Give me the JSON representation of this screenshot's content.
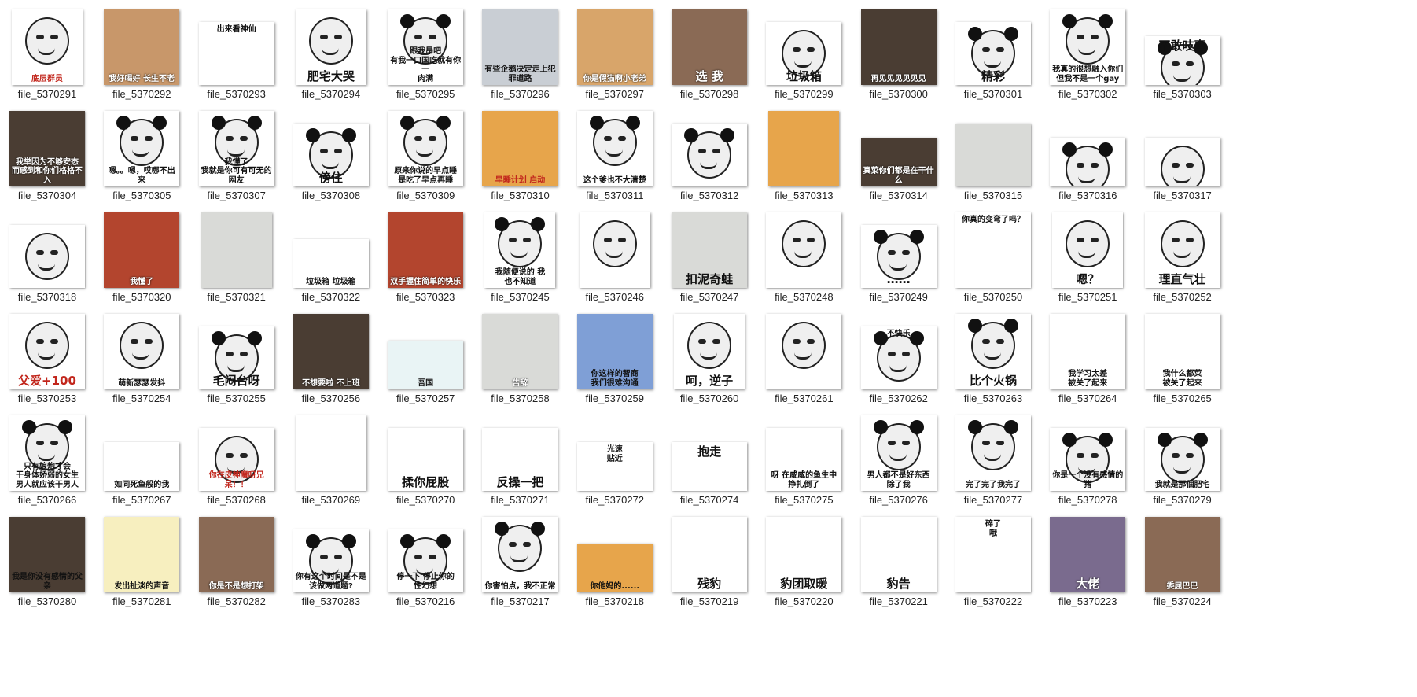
{
  "files": [
    {
      "name": "file_5370291",
      "caption": "底层群员",
      "caption_style": "red",
      "shape": "t",
      "bg": "white",
      "face": "plain"
    },
    {
      "name": "file_5370292",
      "caption": "我好喝好 长生不老",
      "caption_style": "light",
      "shape": "w",
      "bg": "cat",
      "face": "none"
    },
    {
      "name": "file_5370293",
      "caption": "出来看神仙",
      "caption_style": "top",
      "shape": "h",
      "bg": "white",
      "face": "none"
    },
    {
      "name": "file_5370294",
      "caption": "肥宅大哭",
      "caption_style": "big",
      "shape": "t",
      "bg": "white",
      "face": "plain"
    },
    {
      "name": "file_5370295",
      "caption": "跟我昂吧\n有我一口国吃就有你一\n肉满",
      "caption_style": "",
      "shape": "w",
      "bg": "white",
      "face": "panda"
    },
    {
      "name": "file_5370296",
      "caption": "有些企鹅决定走上犯罪道路",
      "caption_style": "",
      "shape": "w",
      "bg": "snow",
      "face": "none"
    },
    {
      "name": "file_5370297",
      "caption": "你是假猫啊小老弟",
      "caption_style": "light",
      "shape": "w",
      "bg": "dog",
      "face": "none"
    },
    {
      "name": "file_5370298",
      "caption": "选 我",
      "caption_style": "big light",
      "shape": "w",
      "bg": "brown",
      "face": "none"
    },
    {
      "name": "file_5370299",
      "caption": "垃圾箱",
      "caption_style": "big",
      "shape": "h",
      "bg": "white",
      "face": "plain"
    },
    {
      "name": "file_5370300",
      "caption": "再见见见见见见",
      "caption_style": "light",
      "shape": "w",
      "bg": "dark",
      "face": "none"
    },
    {
      "name": "file_5370301",
      "caption": "精彩",
      "caption_style": "big",
      "shape": "h",
      "bg": "white",
      "face": "panda"
    },
    {
      "name": "file_5370302",
      "caption": "我真的很想融入你们\n但我不是一个gay",
      "caption_style": "",
      "shape": "w",
      "bg": "white",
      "face": "panda"
    },
    {
      "name": "file_5370303",
      "caption": "不敢吱声",
      "caption_style": "big top",
      "shape": "s",
      "bg": "white",
      "face": "panda"
    },
    {
      "name": "file_5370304",
      "caption": "我举因为不够安态\n而感到和你们格格不入",
      "caption_style": "light",
      "shape": "w",
      "bg": "dark",
      "face": "none"
    },
    {
      "name": "file_5370305",
      "caption": "嗯。。嗯，哎哪不出来",
      "caption_style": "",
      "shape": "w",
      "bg": "white",
      "face": "panda"
    },
    {
      "name": "file_5370307",
      "caption": "我懂了\n我就是你可有可无的网友",
      "caption_style": "",
      "shape": "w",
      "bg": "white",
      "face": "panda"
    },
    {
      "name": "file_5370308",
      "caption": "傍住",
      "caption_style": "big",
      "shape": "h",
      "bg": "white",
      "face": "panda"
    },
    {
      "name": "file_5370309",
      "caption": "原来你说的早点睡\n是吃了早点再睡",
      "caption_style": "",
      "shape": "w",
      "bg": "white",
      "face": "panda"
    },
    {
      "name": "file_5370310",
      "caption": "早睡计划 启动",
      "caption_style": "red",
      "shape": "w",
      "bg": "orange",
      "face": "none"
    },
    {
      "name": "file_5370311",
      "caption": "这个爹也不大清楚",
      "caption_style": "",
      "shape": "w",
      "bg": "white",
      "face": "panda"
    },
    {
      "name": "file_5370312",
      "caption": "",
      "caption_style": "",
      "shape": "h",
      "bg": "white",
      "face": "panda"
    },
    {
      "name": "file_5370313",
      "caption": "",
      "caption_style": "",
      "shape": "t",
      "bg": "orange",
      "face": "none"
    },
    {
      "name": "file_5370314",
      "caption": "真菜你们都是在干什么",
      "caption_style": "light",
      "shape": "s",
      "bg": "dark",
      "face": "none"
    },
    {
      "name": "file_5370315",
      "caption": "",
      "caption_style": "",
      "shape": "h",
      "bg": "grey",
      "face": "none"
    },
    {
      "name": "file_5370316",
      "caption": "",
      "caption_style": "",
      "shape": "s",
      "bg": "white",
      "face": "panda"
    },
    {
      "name": "file_5370317",
      "caption": "",
      "caption_style": "",
      "shape": "s",
      "bg": "white",
      "face": "plain"
    },
    {
      "name": "file_5370318",
      "caption": "",
      "caption_style": "",
      "shape": "h",
      "bg": "white",
      "face": "plain"
    },
    {
      "name": "file_5370320",
      "caption": "我懂了",
      "caption_style": "light",
      "shape": "w",
      "bg": "red",
      "face": "none"
    },
    {
      "name": "file_5370321",
      "caption": "",
      "caption_style": "",
      "shape": "t",
      "bg": "grey",
      "face": "none"
    },
    {
      "name": "file_5370322",
      "caption": "垃圾箱    垃圾箱",
      "caption_style": "",
      "shape": "s",
      "bg": "white",
      "face": "none"
    },
    {
      "name": "file_5370323",
      "caption": "双手握住简单的快乐",
      "caption_style": "light",
      "shape": "w",
      "bg": "red",
      "face": "none"
    },
    {
      "name": "file_5370245",
      "caption": "我随便说的 我\n也不知道",
      "caption_style": "",
      "shape": "t",
      "bg": "white",
      "face": "panda"
    },
    {
      "name": "file_5370246",
      "caption": "",
      "caption_style": "",
      "shape": "t",
      "bg": "white",
      "face": "plain"
    },
    {
      "name": "file_5370247",
      "caption": "扣泥奇蛙",
      "caption_style": "big",
      "shape": "w",
      "bg": "grey",
      "face": "none"
    },
    {
      "name": "file_5370248",
      "caption": "",
      "caption_style": "",
      "shape": "w",
      "bg": "white",
      "face": "plain"
    },
    {
      "name": "file_5370249",
      "caption": "……",
      "caption_style": "big",
      "shape": "h",
      "bg": "white",
      "face": "panda"
    },
    {
      "name": "file_5370250",
      "caption": "你真的变弯了吗？",
      "caption_style": "top",
      "shape": "w",
      "bg": "white",
      "face": "none"
    },
    {
      "name": "file_5370251",
      "caption": "嗯？",
      "caption_style": "big",
      "shape": "t",
      "bg": "white",
      "face": "plain"
    },
    {
      "name": "file_5370252",
      "caption": "理直气壮",
      "caption_style": "big",
      "shape": "w",
      "bg": "white",
      "face": "plain"
    },
    {
      "name": "file_5370253",
      "caption": "父爱+100",
      "caption_style": "big red",
      "shape": "w",
      "bg": "white",
      "face": "plain"
    },
    {
      "name": "file_5370254",
      "caption": "萌新瑟瑟发抖",
      "caption_style": "",
      "shape": "w",
      "bg": "white",
      "face": "plain"
    },
    {
      "name": "file_5370255",
      "caption": "毛闷台呀",
      "caption_style": "big",
      "shape": "h",
      "bg": "white",
      "face": "panda"
    },
    {
      "name": "file_5370256",
      "caption": "不想要啦 不上班",
      "caption_style": "light",
      "shape": "w",
      "bg": "dark",
      "face": "none"
    },
    {
      "name": "file_5370257",
      "caption": "吾国",
      "caption_style": "",
      "shape": "s",
      "bg": "teal",
      "face": "none"
    },
    {
      "name": "file_5370258",
      "caption": "告辞",
      "caption_style": "light",
      "shape": "w",
      "bg": "grey",
      "face": "none"
    },
    {
      "name": "file_5370259",
      "caption": "你这样的智商\n我们很难沟通",
      "caption_style": "",
      "shape": "w",
      "bg": "blue",
      "face": "none"
    },
    {
      "name": "file_5370260",
      "caption": "呵，逆子",
      "caption_style": "big",
      "shape": "t",
      "bg": "white",
      "face": "plain"
    },
    {
      "name": "file_5370261",
      "caption": "",
      "caption_style": "",
      "shape": "w",
      "bg": "white",
      "face": "plain"
    },
    {
      "name": "file_5370262",
      "caption": "不快乐",
      "caption_style": "top",
      "shape": "h",
      "bg": "white",
      "face": "panda"
    },
    {
      "name": "file_5370263",
      "caption": "比个火锅",
      "caption_style": "big",
      "shape": "w",
      "bg": "white",
      "face": "panda"
    },
    {
      "name": "file_5370264",
      "caption": "我学习太差\n被关了起来",
      "caption_style": "",
      "shape": "w",
      "bg": "white",
      "face": "none"
    },
    {
      "name": "file_5370265",
      "caption": "我什么都菜\n被关了起来",
      "caption_style": "",
      "shape": "w",
      "bg": "white",
      "face": "none"
    },
    {
      "name": "file_5370266",
      "caption": "只有娘炮才会\n干身体娇弱的女生\n男人就应该干男人",
      "caption_style": "",
      "shape": "w",
      "bg": "white",
      "face": "panda"
    },
    {
      "name": "file_5370267",
      "caption": "如同死鱼般的我",
      "caption_style": "",
      "shape": "s",
      "bg": "white",
      "face": "none"
    },
    {
      "name": "file_5370268",
      "caption": "你在皮神魔呀兄呆！！",
      "caption_style": "red",
      "shape": "h",
      "bg": "white",
      "face": "plain"
    },
    {
      "name": "file_5370269",
      "caption": "",
      "caption_style": "",
      "shape": "t",
      "bg": "white",
      "face": "none"
    },
    {
      "name": "file_5370270",
      "caption": "揉你屁股",
      "caption_style": "big",
      "shape": "h",
      "bg": "white",
      "face": "none"
    },
    {
      "name": "file_5370271",
      "caption": "反操一把",
      "caption_style": "big",
      "shape": "h",
      "bg": "white",
      "face": "none"
    },
    {
      "name": "file_5370272",
      "caption": "光速\n贴近",
      "caption_style": "top",
      "shape": "s",
      "bg": "white",
      "face": "none"
    },
    {
      "name": "file_5370274",
      "caption": "抱走",
      "caption_style": "big top",
      "shape": "s",
      "bg": "white",
      "face": "none"
    },
    {
      "name": "file_5370275",
      "caption": "呀 在咸咸的鱼生中挣扎倒了",
      "caption_style": "",
      "shape": "h",
      "bg": "white",
      "face": "none"
    },
    {
      "name": "file_5370276",
      "caption": "男人都不是好东西 除了我",
      "caption_style": "",
      "shape": "w",
      "bg": "white",
      "face": "panda"
    },
    {
      "name": "file_5370277",
      "caption": "完了完了我完了",
      "caption_style": "",
      "shape": "w",
      "bg": "white",
      "face": "panda"
    },
    {
      "name": "file_5370278",
      "caption": "你是一个没有感情的猪",
      "caption_style": "",
      "shape": "h",
      "bg": "white",
      "face": "panda"
    },
    {
      "name": "file_5370279",
      "caption": "我就是那個肥宅",
      "caption_style": "",
      "shape": "h",
      "bg": "white",
      "face": "panda"
    },
    {
      "name": "file_5370280",
      "caption": "我是你没有感情的父亲",
      "caption_style": "",
      "shape": "w",
      "bg": "dark",
      "face": "none"
    },
    {
      "name": "file_5370281",
      "caption": "发出扯淡的声音",
      "caption_style": "",
      "shape": "w",
      "bg": "yel",
      "face": "none"
    },
    {
      "name": "file_5370282",
      "caption": "你是不是想打架",
      "caption_style": "light",
      "shape": "w",
      "bg": "brown",
      "face": "none"
    },
    {
      "name": "file_5370283",
      "caption": "你有这个时间是不是该做两道题?",
      "caption_style": "",
      "shape": "h",
      "bg": "white",
      "face": "panda"
    },
    {
      "name": "file_5370216",
      "caption": "停一下 停止你的\n性幻想",
      "caption_style": "",
      "shape": "h",
      "bg": "white",
      "face": "panda"
    },
    {
      "name": "file_5370217",
      "caption": "你害怕点，我不正常",
      "caption_style": "",
      "shape": "w",
      "bg": "white",
      "face": "panda"
    },
    {
      "name": "file_5370218",
      "caption": "你他妈的......",
      "caption_style": "",
      "shape": "s",
      "bg": "orange",
      "face": "none"
    },
    {
      "name": "file_5370219",
      "caption": "残豹",
      "caption_style": "big",
      "shape": "w",
      "bg": "white",
      "face": "none"
    },
    {
      "name": "file_5370220",
      "caption": "豹团取暖",
      "caption_style": "big",
      "shape": "w",
      "bg": "white",
      "face": "none"
    },
    {
      "name": "file_5370221",
      "caption": "豹告",
      "caption_style": "big",
      "shape": "w",
      "bg": "white",
      "face": "none"
    },
    {
      "name": "file_5370222",
      "caption": "碎了\n哦",
      "caption_style": "top",
      "shape": "w",
      "bg": "white",
      "face": "none"
    },
    {
      "name": "file_5370223",
      "caption": "大佬",
      "caption_style": "big light",
      "shape": "w",
      "bg": "purp",
      "face": "none"
    },
    {
      "name": "file_5370224",
      "caption": "委屈巴巴",
      "caption_style": "light",
      "shape": "w",
      "bg": "brown",
      "face": "none"
    }
  ]
}
